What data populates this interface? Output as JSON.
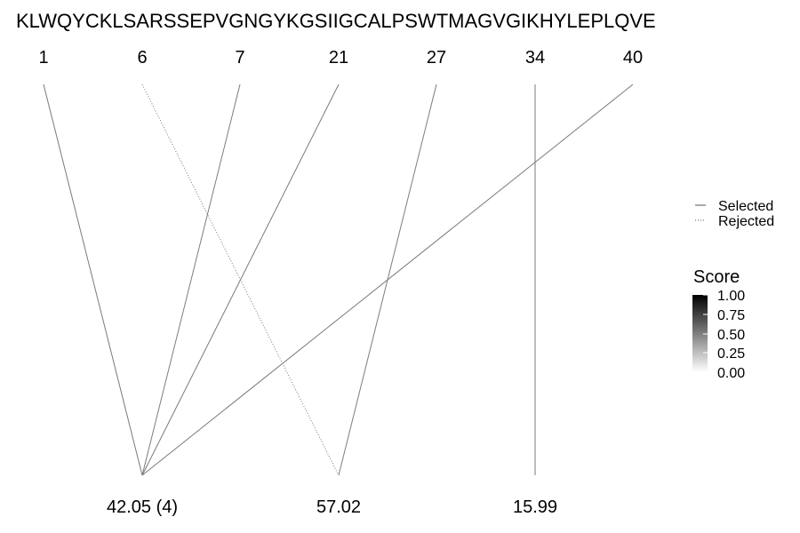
{
  "sequence": "KLWQYCKLSARSSEPVGNGYKGSIIGCALPSWTMAGVGIKHYLEPLQVE",
  "positions": [
    "1",
    "6",
    "7",
    "21",
    "27",
    "34",
    "40"
  ],
  "targets": [
    {
      "label": "42.05 (4)"
    },
    {
      "label": "57.02"
    },
    {
      "label": "15.99"
    }
  ],
  "links": [
    {
      "from": 0,
      "to": 0,
      "status": "selected"
    },
    {
      "from": 1,
      "to": 1,
      "status": "rejected"
    },
    {
      "from": 2,
      "to": 0,
      "status": "selected"
    },
    {
      "from": 3,
      "to": 0,
      "status": "selected"
    },
    {
      "from": 4,
      "to": 1,
      "status": "selected"
    },
    {
      "from": 5,
      "to": 2,
      "status": "selected"
    },
    {
      "from": 6,
      "to": 0,
      "status": "selected"
    }
  ],
  "legend": {
    "selected_label": "Selected",
    "rejected_label": "Rejected"
  },
  "score_legend": {
    "title": "Score",
    "ticks": [
      "1.00",
      "0.75",
      "0.50",
      "0.25",
      "0.00"
    ],
    "gradient": [
      "#000000",
      "#ffffff"
    ]
  },
  "colors": {
    "line": "#7a7a7a",
    "text": "#000000"
  }
}
